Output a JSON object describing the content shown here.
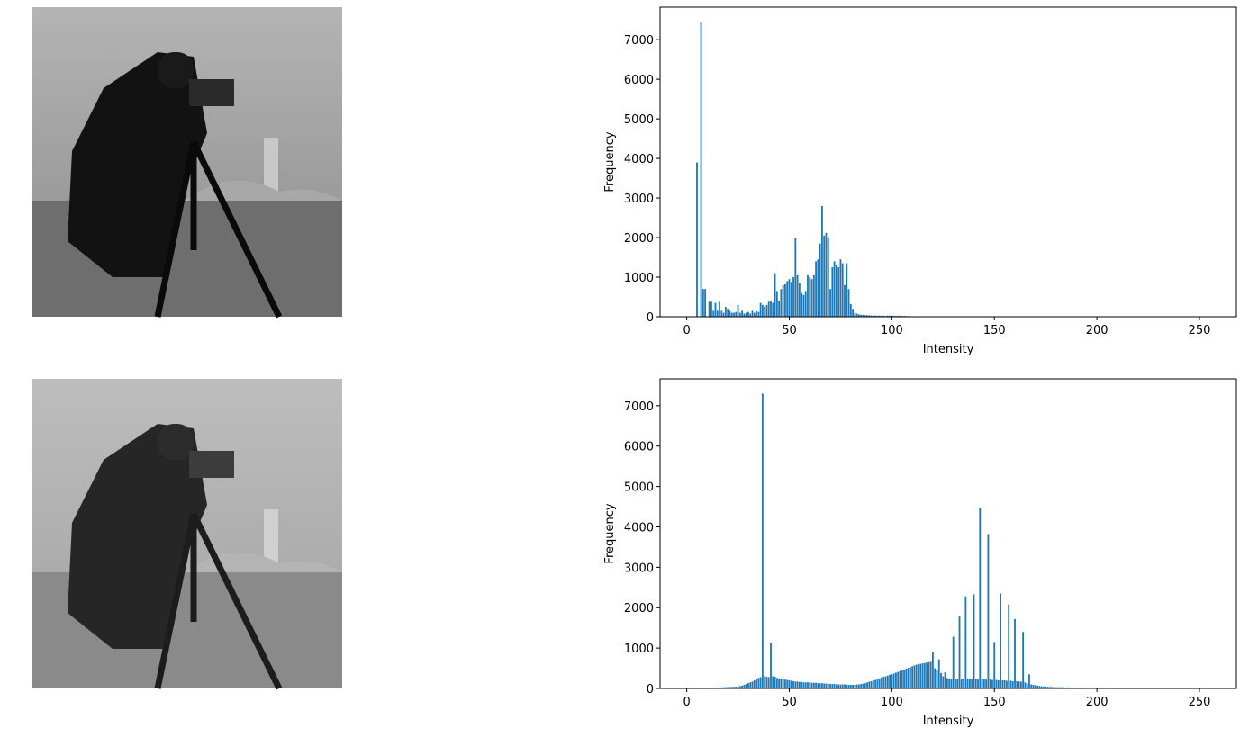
{
  "chart_data": [
    {
      "type": "bar",
      "x_label": "Intensity",
      "y_label": "Frequency",
      "color": "#1f77b4",
      "x": [
        5,
        6,
        7,
        8,
        9,
        10,
        11,
        12,
        13,
        14,
        15,
        16,
        17,
        18,
        19,
        20,
        21,
        22,
        23,
        24,
        25,
        26,
        27,
        28,
        29,
        30,
        31,
        32,
        33,
        34,
        35,
        36,
        37,
        38,
        39,
        40,
        41,
        42,
        43,
        44,
        45,
        46,
        47,
        48,
        49,
        50,
        51,
        52,
        53,
        54,
        55,
        56,
        57,
        58,
        59,
        60,
        61,
        62,
        63,
        64,
        65,
        66,
        67,
        68,
        69,
        70,
        71,
        72,
        73,
        74,
        75,
        76,
        77,
        78,
        79,
        80,
        81,
        82,
        83,
        84,
        85,
        86,
        87,
        88,
        89,
        90,
        91,
        92,
        93,
        94,
        95,
        96,
        97,
        98,
        99,
        100,
        101,
        102,
        103,
        104,
        105,
        106,
        107,
        108,
        109,
        110,
        111,
        112,
        113,
        114,
        115
      ],
      "values": [
        3900,
        0,
        7450,
        700,
        700,
        0,
        380,
        380,
        150,
        350,
        150,
        380,
        150,
        100,
        250,
        200,
        150,
        100,
        100,
        120,
        300,
        100,
        150,
        80,
        100,
        120,
        80,
        150,
        100,
        140,
        120,
        350,
        300,
        250,
        300,
        380,
        400,
        350,
        1100,
        650,
        400,
        700,
        800,
        820,
        900,
        950,
        880,
        1000,
        1980,
        1050,
        850,
        600,
        550,
        650,
        1050,
        1000,
        950,
        1050,
        1400,
        1450,
        1850,
        2800,
        2050,
        2120,
        2000,
        700,
        1250,
        1400,
        1300,
        1250,
        1450,
        1350,
        800,
        1350,
        700,
        320,
        200,
        100,
        80,
        60,
        50,
        50,
        40,
        40,
        35,
        35,
        30,
        30,
        25,
        30,
        25,
        25,
        20,
        30,
        25,
        30,
        25,
        20,
        20,
        25,
        15,
        20,
        15,
        15,
        10,
        10,
        10,
        10,
        5,
        5,
        5
      ],
      "xlim": [
        -13,
        268
      ],
      "xticks": [
        0,
        50,
        100,
        150,
        200,
        250
      ],
      "ylim": [
        0,
        7822
      ],
      "yticks": [
        0,
        1000,
        2000,
        3000,
        4000,
        5000,
        6000,
        7000
      ]
    },
    {
      "type": "bar",
      "x_label": "Intensity",
      "y_label": "Frequency",
      "color": "#1f77b4",
      "x": [
        14,
        15,
        16,
        17,
        18,
        19,
        20,
        21,
        22,
        23,
        24,
        25,
        26,
        27,
        28,
        29,
        30,
        31,
        32,
        33,
        34,
        35,
        36,
        37,
        38,
        39,
        40,
        41,
        42,
        43,
        44,
        45,
        46,
        47,
        48,
        49,
        50,
        51,
        52,
        53,
        54,
        55,
        56,
        57,
        58,
        59,
        60,
        61,
        62,
        63,
        64,
        65,
        66,
        67,
        68,
        69,
        70,
        71,
        72,
        73,
        74,
        75,
        76,
        77,
        78,
        79,
        80,
        81,
        82,
        83,
        84,
        85,
        86,
        87,
        88,
        89,
        90,
        91,
        92,
        93,
        94,
        95,
        96,
        97,
        98,
        99,
        100,
        101,
        102,
        103,
        104,
        105,
        106,
        107,
        108,
        109,
        110,
        111,
        112,
        113,
        114,
        115,
        116,
        117,
        118,
        119,
        120,
        121,
        122,
        123,
        124,
        125,
        126,
        127,
        128,
        129,
        130,
        131,
        132,
        133,
        134,
        135,
        136,
        137,
        138,
        139,
        140,
        141,
        142,
        143,
        144,
        145,
        146,
        147,
        148,
        149,
        150,
        151,
        152,
        153,
        154,
        155,
        156,
        157,
        158,
        159,
        160,
        161,
        162,
        163,
        164,
        165,
        166,
        167,
        168,
        169,
        170,
        171,
        172,
        173,
        174,
        175,
        176,
        177,
        178,
        179,
        180,
        181,
        182,
        183,
        184,
        185,
        186,
        187,
        188,
        189,
        190,
        191,
        192,
        193,
        194,
        195,
        196,
        197,
        198,
        199,
        200,
        201,
        202,
        203,
        204,
        205,
        206,
        207,
        208,
        209,
        210,
        211,
        212,
        213,
        214,
        215,
        216
      ],
      "values": [
        20,
        20,
        25,
        25,
        30,
        30,
        35,
        35,
        40,
        40,
        45,
        50,
        60,
        70,
        90,
        110,
        130,
        150,
        170,
        200,
        230,
        260,
        280,
        7300,
        300,
        290,
        280,
        1130,
        300,
        290,
        260,
        250,
        240,
        230,
        220,
        210,
        200,
        190,
        180,
        170,
        170,
        160,
        160,
        150,
        150,
        150,
        150,
        140,
        140,
        140,
        130,
        130,
        130,
        120,
        120,
        120,
        110,
        110,
        110,
        100,
        100,
        100,
        100,
        100,
        90,
        90,
        90,
        90,
        90,
        100,
        100,
        110,
        120,
        130,
        150,
        170,
        180,
        200,
        210,
        230,
        250,
        270,
        290,
        300,
        320,
        340,
        350,
        370,
        390,
        410,
        430,
        450,
        470,
        490,
        510,
        530,
        550,
        570,
        590,
        600,
        610,
        620,
        630,
        640,
        650,
        660,
        900,
        500,
        450,
        720,
        380,
        300,
        400,
        260,
        240,
        230,
        1280,
        240,
        230,
        1780,
        230,
        240,
        2280,
        250,
        240,
        230,
        2330,
        240,
        230,
        4480,
        240,
        230,
        220,
        3820,
        220,
        210,
        1150,
        210,
        200,
        2350,
        200,
        200,
        190,
        2080,
        190,
        180,
        1720,
        180,
        170,
        170,
        1400,
        150,
        120,
        350,
        100,
        90,
        80,
        70,
        60,
        55,
        50,
        45,
        40,
        40,
        35,
        35,
        30,
        30,
        30,
        30,
        25,
        25,
        25,
        25,
        20,
        20,
        20,
        20,
        20,
        20,
        20,
        15,
        15,
        15,
        15,
        15,
        15,
        15,
        15,
        15,
        10,
        10,
        10,
        10,
        10,
        10,
        10,
        10,
        10,
        10,
        5,
        5,
        5
      ],
      "xlim": [
        -13,
        268
      ],
      "xticks": [
        0,
        50,
        100,
        150,
        200,
        250
      ],
      "ylim": [
        0,
        7665
      ],
      "yticks": [
        0,
        1000,
        2000,
        3000,
        4000,
        5000,
        6000,
        7000
      ]
    }
  ]
}
